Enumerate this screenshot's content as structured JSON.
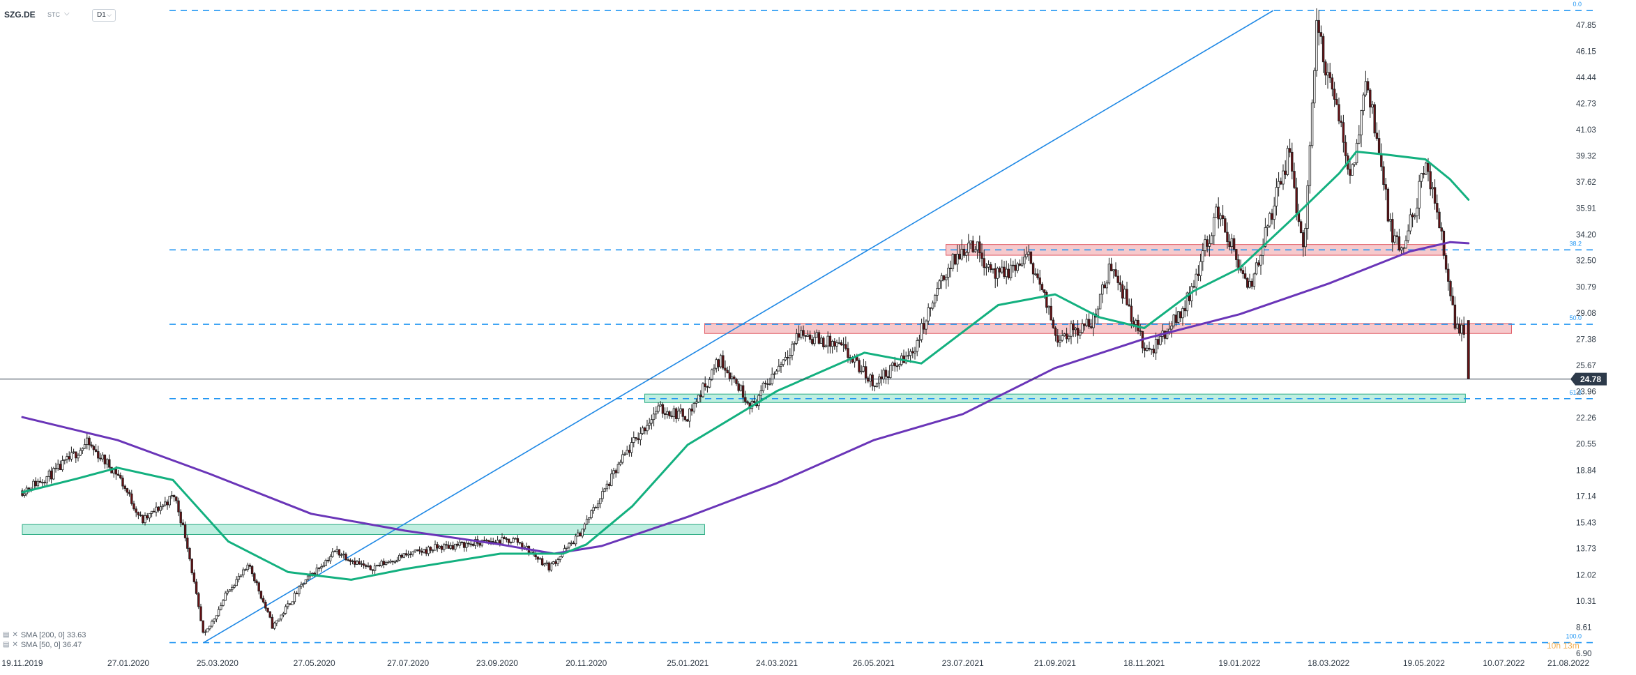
{
  "header": {
    "symbol": "SZG.DE",
    "exchange": "STC",
    "timeframe": "D1"
  },
  "legend": [
    {
      "label": "SMA [200, 0] 33.63"
    },
    {
      "label": "SMA [50, 0] 36.47"
    }
  ],
  "colors": {
    "fib": "#2196f3",
    "trendline": "#1e88e5",
    "sma200": "#6a35b8",
    "sma50": "#13b07f",
    "resistance_zone": "#f6c9cc",
    "support_zone": "#bfeee0",
    "price_tag": "#2d3a4a"
  },
  "chart_data": {
    "type": "candlestick",
    "y_ticks": [
      "47.85",
      "46.15",
      "44.44",
      "42.73",
      "41.03",
      "39.32",
      "37.62",
      "35.91",
      "34.20",
      "32.50",
      "30.79",
      "29.08",
      "27.38",
      "25.67",
      "23.96",
      "22.26",
      "20.55",
      "18.84",
      "17.14",
      "15.43",
      "13.73",
      "12.02",
      "10.31",
      "8.61",
      "6.90"
    ],
    "x_ticks": [
      "19.11.2019",
      "27.01.2020",
      "25.03.2020",
      "27.05.2020",
      "27.07.2020",
      "23.09.2020",
      "20.11.2020",
      "25.01.2021",
      "24.03.2021",
      "26.05.2021",
      "23.07.2021",
      "21.09.2021",
      "18.11.2021",
      "19.01.2022",
      "18.03.2022",
      "19.05.2022",
      "10.07.2022",
      "21.08.2022"
    ],
    "ylim": [
      6.9,
      47.85
    ],
    "last_price": "24.78",
    "watermark": "10h 13m",
    "fibonacci": [
      {
        "level": "0.0",
        "price": 48.8
      },
      {
        "level": "38.2",
        "price": 33.2
      },
      {
        "level": "50.0",
        "price": 28.35
      },
      {
        "level": "61.8",
        "price": 23.5
      },
      {
        "level": "100.0",
        "price": 7.6
      }
    ],
    "zones": [
      {
        "kind": "resistance",
        "from_date": "12.07.2021",
        "to_date": "02.06.2022",
        "low": 32.85,
        "high": 33.55
      },
      {
        "kind": "resistance",
        "from_date": "05.02.2021",
        "to_date": "15.07.2022",
        "low": 27.75,
        "high": 28.4
      },
      {
        "kind": "support",
        "from_date": "28.12.2020",
        "to_date": "15.06.2022",
        "low": 23.25,
        "high": 23.8
      },
      {
        "kind": "support",
        "from_date": "19.11.2019",
        "to_date": "05.02.2021",
        "low": 14.65,
        "high": 15.3
      }
    ],
    "trendline": {
      "from": {
        "date": "16.03.2020",
        "price": 7.6
      },
      "to": {
        "date": "10.02.2022",
        "price": 48.8
      }
    },
    "price_path": [
      {
        "date": "19.11.2019",
        "price": 17.5
      },
      {
        "date": "10.12.2019",
        "price": 18.7
      },
      {
        "date": "31.12.2019",
        "price": 20.6
      },
      {
        "date": "20.01.2020",
        "price": 18.6
      },
      {
        "date": "05.02.2020",
        "price": 15.5
      },
      {
        "date": "26.02.2020",
        "price": 17.2
      },
      {
        "date": "05.03.2020",
        "price": 14.2
      },
      {
        "date": "16.03.2020",
        "price": 7.9
      },
      {
        "date": "02.04.2020",
        "price": 11.2
      },
      {
        "date": "15.04.2020",
        "price": 12.6
      },
      {
        "date": "30.04.2020",
        "price": 8.6
      },
      {
        "date": "20.05.2020",
        "price": 11.5
      },
      {
        "date": "10.06.2020",
        "price": 13.6
      },
      {
        "date": "01.07.2020",
        "price": 12.4
      },
      {
        "date": "22.07.2020",
        "price": 13.2
      },
      {
        "date": "15.08.2020",
        "price": 13.8
      },
      {
        "date": "10.09.2020",
        "price": 14.1
      },
      {
        "date": "05.10.2020",
        "price": 14.3
      },
      {
        "date": "27.10.2020",
        "price": 12.5
      },
      {
        "date": "15.11.2020",
        "price": 14.6
      },
      {
        "date": "15.12.2020",
        "price": 19.8
      },
      {
        "date": "05.01.2021",
        "price": 22.8
      },
      {
        "date": "25.01.2021",
        "price": 22.4
      },
      {
        "date": "15.02.2021",
        "price": 26.1
      },
      {
        "date": "08.03.2021",
        "price": 23.0
      },
      {
        "date": "08.04.2021",
        "price": 27.8
      },
      {
        "date": "05.05.2021",
        "price": 26.8
      },
      {
        "date": "26.05.2021",
        "price": 24.5
      },
      {
        "date": "20.06.2021",
        "price": 26.5
      },
      {
        "date": "12.07.2021",
        "price": 31.8
      },
      {
        "date": "28.07.2021",
        "price": 33.8
      },
      {
        "date": "15.08.2021",
        "price": 31.4
      },
      {
        "date": "05.09.2021",
        "price": 32.7
      },
      {
        "date": "22.09.2021",
        "price": 27.6
      },
      {
        "date": "15.10.2021",
        "price": 28.4
      },
      {
        "date": "28.10.2021",
        "price": 32.4
      },
      {
        "date": "20.11.2021",
        "price": 26.3
      },
      {
        "date": "15.12.2021",
        "price": 29.6
      },
      {
        "date": "05.01.2022",
        "price": 35.8
      },
      {
        "date": "25.01.2022",
        "price": 30.4
      },
      {
        "date": "20.02.2022",
        "price": 39.5
      },
      {
        "date": "02.03.2022",
        "price": 33.0
      },
      {
        "date": "10.03.2022",
        "price": 47.8
      },
      {
        "date": "02.04.2022",
        "price": 38.0
      },
      {
        "date": "12.04.2022",
        "price": 44.6
      },
      {
        "date": "28.04.2022",
        "price": 34.0
      },
      {
        "date": "05.05.2022",
        "price": 33.0
      },
      {
        "date": "20.05.2022",
        "price": 38.5
      },
      {
        "date": "30.05.2022",
        "price": 34.6
      },
      {
        "date": "08.06.2022",
        "price": 28.4
      },
      {
        "date": "15.06.2022",
        "price": 28.0
      },
      {
        "date": "17.06.2022",
        "price": 24.78
      }
    ],
    "series": [
      {
        "name": "SMA [200, 0] 33.63",
        "points": [
          {
            "date": "19.11.2019",
            "price": 22.3
          },
          {
            "date": "20.01.2020",
            "price": 20.8
          },
          {
            "date": "20.03.2020",
            "price": 18.6
          },
          {
            "date": "25.05.2020",
            "price": 16.0
          },
          {
            "date": "25.07.2020",
            "price": 14.9
          },
          {
            "date": "25.09.2020",
            "price": 14.0
          },
          {
            "date": "30.10.2020",
            "price": 13.4
          },
          {
            "date": "30.11.2020",
            "price": 13.9
          },
          {
            "date": "25.01.2021",
            "price": 15.8
          },
          {
            "date": "24.03.2021",
            "price": 18.0
          },
          {
            "date": "26.05.2021",
            "price": 20.8
          },
          {
            "date": "23.07.2021",
            "price": 22.5
          },
          {
            "date": "21.09.2021",
            "price": 25.5
          },
          {
            "date": "18.11.2021",
            "price": 27.4
          },
          {
            "date": "19.01.2022",
            "price": 29.0
          },
          {
            "date": "18.03.2022",
            "price": 31.0
          },
          {
            "date": "10.05.2022",
            "price": 33.1
          },
          {
            "date": "05.06.2022",
            "price": 33.7
          },
          {
            "date": "17.06.2022",
            "price": 33.63
          }
        ]
      },
      {
        "name": "SMA [50, 0] 36.47",
        "points": [
          {
            "date": "19.11.2019",
            "price": 17.4
          },
          {
            "date": "25.12.2019",
            "price": 18.3
          },
          {
            "date": "20.01.2020",
            "price": 19.0
          },
          {
            "date": "25.02.2020",
            "price": 18.2
          },
          {
            "date": "01.04.2020",
            "price": 14.2
          },
          {
            "date": "10.05.2020",
            "price": 12.2
          },
          {
            "date": "20.06.2020",
            "price": 11.7
          },
          {
            "date": "25.07.2020",
            "price": 12.4
          },
          {
            "date": "25.09.2020",
            "price": 13.4
          },
          {
            "date": "05.11.2020",
            "price": 13.4
          },
          {
            "date": "20.11.2020",
            "price": 14.0
          },
          {
            "date": "20.12.2020",
            "price": 16.5
          },
          {
            "date": "25.01.2021",
            "price": 20.5
          },
          {
            "date": "24.03.2021",
            "price": 24.0
          },
          {
            "date": "20.05.2021",
            "price": 26.5
          },
          {
            "date": "26.06.2021",
            "price": 25.8
          },
          {
            "date": "15.08.2021",
            "price": 29.6
          },
          {
            "date": "21.09.2021",
            "price": 30.3
          },
          {
            "date": "20.10.2021",
            "price": 28.8
          },
          {
            "date": "18.11.2021",
            "price": 28.1
          },
          {
            "date": "20.12.2021",
            "price": 30.5
          },
          {
            "date": "19.01.2022",
            "price": 32.0
          },
          {
            "date": "20.02.2022",
            "price": 35.0
          },
          {
            "date": "25.03.2022",
            "price": 38.2
          },
          {
            "date": "05.04.2022",
            "price": 39.6
          },
          {
            "date": "25.04.2022",
            "price": 39.4
          },
          {
            "date": "20.05.2022",
            "price": 39.1
          },
          {
            "date": "05.06.2022",
            "price": 37.8
          },
          {
            "date": "17.06.2022",
            "price": 36.47
          }
        ]
      }
    ]
  }
}
